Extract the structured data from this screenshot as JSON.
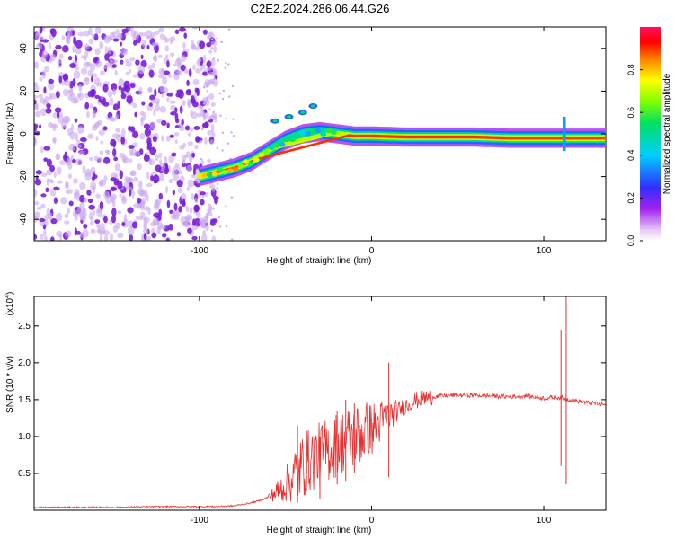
{
  "title": "C2E2.2024.286.06.44.G26",
  "colors": {
    "signal": "#ff0000",
    "snr_line": "#e83030",
    "scatter": "#7a1fd6",
    "scatter_light": "#c9a8ee"
  },
  "chart_data": [
    {
      "type": "heatmap",
      "name": "spectrogram",
      "xlabel": "Height of straight line (km)",
      "ylabel": "Frequency (Hz)",
      "xlim": [
        -196,
        136
      ],
      "ylim": [
        -50,
        50
      ],
      "x_ticks": [
        -100,
        0,
        100
      ],
      "x_tick_labels": [
        "-100",
        "0",
        "100"
      ],
      "y_ticks": [
        -40,
        -20,
        0,
        20,
        40
      ],
      "y_tick_labels": [
        "-40",
        "-20",
        "0",
        "20",
        "40"
      ],
      "colorbar": {
        "label": "Normalized spectral amplitude",
        "range": [
          0,
          1
        ],
        "ticks": [
          0.0,
          0.2,
          0.4,
          0.6,
          0.8
        ],
        "tick_labels": [
          "0.0",
          "0.2",
          "0.4",
          "0.6",
          "0.8"
        ]
      },
      "noise_region": {
        "x_range": [
          -196,
          -100
        ],
        "freq_range": [
          -50,
          50
        ]
      },
      "signal_trace": [
        {
          "x": -100,
          "freq": -20,
          "amp": 0.75
        },
        {
          "x": -90,
          "freq": -18,
          "amp": 0.8
        },
        {
          "x": -80,
          "freq": -16,
          "amp": 0.8
        },
        {
          "x": -70,
          "freq": -13,
          "amp": 0.75
        },
        {
          "x": -60,
          "freq": -8,
          "amp": 0.6
        },
        {
          "x": -50,
          "freq": -3,
          "amp": 0.5
        },
        {
          "x": -40,
          "freq": 0,
          "amp": 0.5
        },
        {
          "x": -30,
          "freq": 1,
          "amp": 0.5
        },
        {
          "x": -20,
          "freq": 0,
          "amp": 0.6
        },
        {
          "x": -10,
          "freq": -1,
          "amp": 0.8
        },
        {
          "x": 0,
          "freq": -1,
          "amp": 0.95
        },
        {
          "x": 20,
          "freq": -1.5,
          "amp": 1.0
        },
        {
          "x": 40,
          "freq": -1.5,
          "amp": 1.0
        },
        {
          "x": 60,
          "freq": -1.5,
          "amp": 1.0
        },
        {
          "x": 80,
          "freq": -2,
          "amp": 0.95
        },
        {
          "x": 100,
          "freq": -2,
          "amp": 0.9
        },
        {
          "x": 120,
          "freq": -2,
          "amp": 0.9
        },
        {
          "x": 136,
          "freq": -2,
          "amp": 0.85
        }
      ],
      "spur_trace": [
        {
          "x": -56,
          "freq": 6
        },
        {
          "x": -48,
          "freq": 8
        },
        {
          "x": -40,
          "freq": 10
        },
        {
          "x": -34,
          "freq": 13
        }
      ],
      "spikes": [
        {
          "x": 112,
          "freq_range": [
            -8,
            8
          ]
        }
      ]
    },
    {
      "type": "line",
      "name": "snr",
      "xlabel": "Height of straight line (km)",
      "ylabel": "SNR (10 * v/v)",
      "y_multiplier_label": "(x10",
      "y_multiplier_exp": "4",
      "xlim": [
        -196,
        136
      ],
      "ylim": [
        0,
        2.9
      ],
      "x_ticks": [
        -100,
        0,
        100
      ],
      "x_tick_labels": [
        "-100",
        "0",
        "100"
      ],
      "y_ticks": [
        0.5,
        1.0,
        1.5,
        2.0,
        2.5
      ],
      "y_tick_labels": [
        "0.5",
        "1.0",
        "1.5",
        "2.0",
        "2.5"
      ],
      "series": [
        {
          "color": "#e83030",
          "points": [
            [
              -196,
              0.04
            ],
            [
              -150,
              0.04
            ],
            [
              -120,
              0.05
            ],
            [
              -100,
              0.05
            ],
            [
              -90,
              0.05
            ],
            [
              -80,
              0.06
            ],
            [
              -75,
              0.08
            ],
            [
              -70,
              0.1
            ],
            [
              -65,
              0.13
            ],
            [
              -60,
              0.18
            ],
            [
              -55,
              0.25
            ],
            [
              -50,
              0.35
            ],
            [
              -45,
              0.45
            ],
            [
              -40,
              0.6
            ],
            [
              -35,
              0.7
            ],
            [
              -30,
              0.75
            ],
            [
              -25,
              0.82
            ],
            [
              -20,
              0.9
            ],
            [
              -15,
              0.95
            ],
            [
              -10,
              1.0
            ],
            [
              -5,
              1.05
            ],
            [
              0,
              1.1
            ],
            [
              5,
              1.2
            ],
            [
              10,
              1.28
            ],
            [
              15,
              1.35
            ],
            [
              20,
              1.42
            ],
            [
              25,
              1.48
            ],
            [
              30,
              1.52
            ],
            [
              40,
              1.55
            ],
            [
              50,
              1.56
            ],
            [
              60,
              1.56
            ],
            [
              70,
              1.55
            ],
            [
              80,
              1.54
            ],
            [
              90,
              1.55
            ],
            [
              100,
              1.52
            ],
            [
              105,
              1.53
            ],
            [
              110,
              1.53
            ],
            [
              115,
              1.5
            ],
            [
              120,
              1.48
            ],
            [
              125,
              1.46
            ],
            [
              130,
              1.45
            ],
            [
              136,
              1.43
            ]
          ],
          "noise_spikes": [
            {
              "x": -43,
              "max": 1.15,
              "min": 0.1
            },
            {
              "x": -30,
              "max": 1.0,
              "min": 0.15
            },
            {
              "x": -20,
              "max": 1.35,
              "min": 0.35
            },
            {
              "x": -15,
              "max": 1.5,
              "min": 0.4
            },
            {
              "x": -10,
              "max": 1.45,
              "min": 0.5
            },
            {
              "x": 10,
              "max": 2.0,
              "min": 0.45
            },
            {
              "x": 110,
              "max": 2.45,
              "min": 0.6
            },
            {
              "x": 113,
              "max": 2.9,
              "min": 0.35
            }
          ]
        }
      ]
    }
  ]
}
